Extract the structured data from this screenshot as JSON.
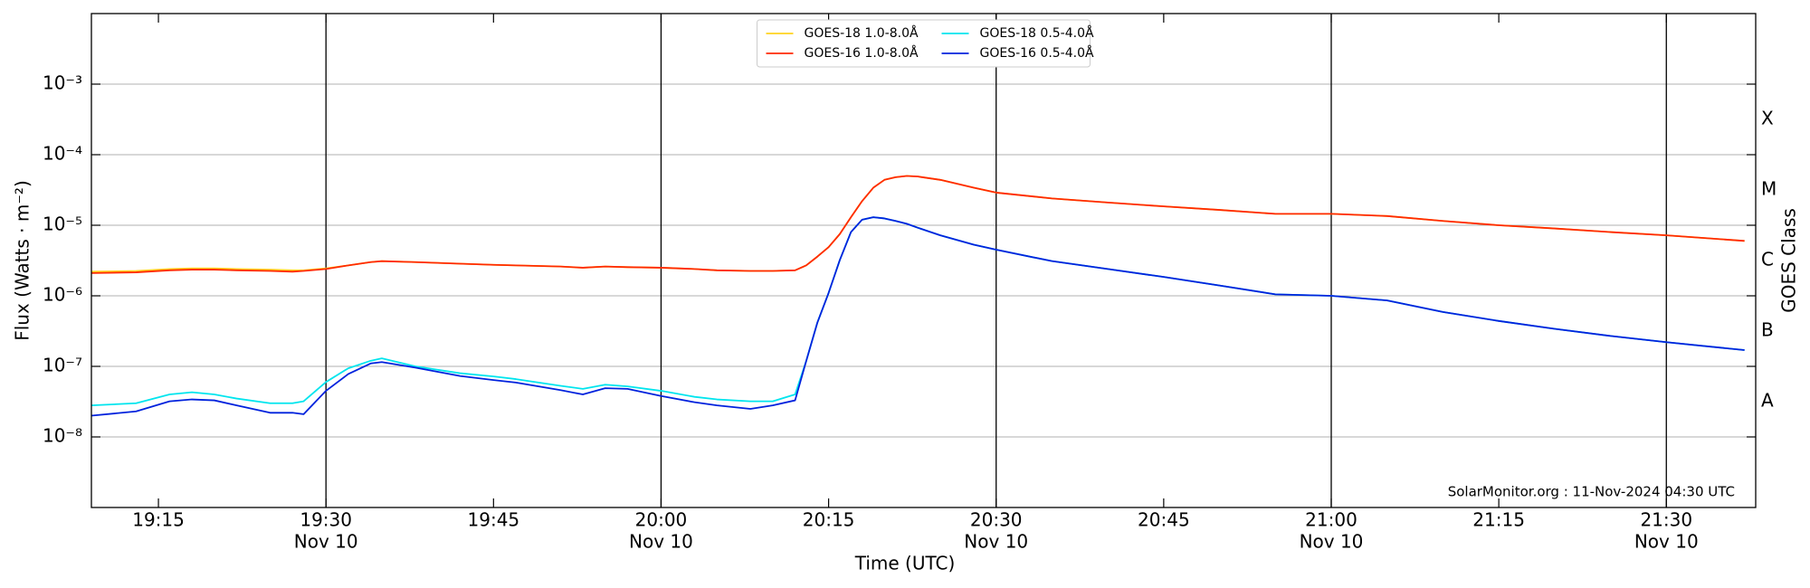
{
  "chart_data": {
    "type": "line",
    "log_y": true,
    "grid": true,
    "date_lines": true,
    "legend": "upper center",
    "xlabel": "Time (UTC)",
    "ylabel": "Flux (Watts · m⁻²)",
    "y2label": "GOES Class",
    "credit": "SolarMonitor.org : 11-Nov-2024 04:30 UTC",
    "xlim": [
      "19:09",
      "21:38"
    ],
    "xticks": [
      "19:15",
      "19:30",
      "19:45",
      "20:00",
      "20:15",
      "20:30",
      "20:45",
      "21:00",
      "21:15",
      "21:30"
    ],
    "xtick_dates": [
      null,
      "Nov 10",
      null,
      "Nov 10",
      null,
      "Nov 10",
      null,
      "Nov 10",
      null,
      "Nov 10"
    ],
    "ylim": [
      1e-09,
      0.01
    ],
    "yticks": [
      {
        "value": 1e-08,
        "label": "10⁻⁸"
      },
      {
        "value": 1e-07,
        "label": "10⁻⁷"
      },
      {
        "value": 1e-06,
        "label": "10⁻⁶"
      },
      {
        "value": 1e-05,
        "label": "10⁻⁵"
      },
      {
        "value": 0.0001,
        "label": "10⁻⁴"
      },
      {
        "value": 0.001,
        "label": "10⁻³"
      }
    ],
    "y2lim": [
      1e-09,
      0.01
    ],
    "y2ticks": [
      {
        "value": 3.16e-08,
        "label": "A"
      },
      {
        "value": 3.16e-07,
        "label": "B"
      },
      {
        "value": 3.16e-06,
        "label": "C"
      },
      {
        "value": 3.16e-05,
        "label": "M"
      },
      {
        "value": 0.000316,
        "label": "X"
      }
    ],
    "x": [
      "19:09",
      "19:13",
      "19:16",
      "19:18",
      "19:20",
      "19:22",
      "19:25",
      "19:27",
      "19:28",
      "19:30",
      "19:32",
      "19:34",
      "19:35",
      "19:38",
      "19:42",
      "19:45",
      "19:47",
      "19:51",
      "19:53",
      "19:55",
      "19:57",
      "20:00",
      "20:03",
      "20:05",
      "20:08",
      "20:10",
      "20:12",
      "20:13",
      "20:14",
      "20:15",
      "20:16",
      "20:17",
      "20:18",
      "20:19",
      "20:20",
      "20:21",
      "20:22",
      "20:23",
      "20:25",
      "20:28",
      "20:30",
      "20:35",
      "20:40",
      "20:45",
      "20:50",
      "20:55",
      "21:00",
      "21:05",
      "21:10",
      "21:15",
      "21:20",
      "21:25",
      "21:30",
      "21:37"
    ],
    "series": [
      {
        "name": "GOES-18 1.0-8.0Å",
        "color": "#ffd21f",
        "values": [
          2.2e-06,
          2.25e-06,
          2.4e-06,
          2.45e-06,
          2.45e-06,
          2.4e-06,
          2.35e-06,
          2.3e-06,
          2.3e-06,
          2.45e-06,
          2.7e-06,
          3e-06,
          3.1e-06,
          3e-06,
          2.85e-06,
          2.75e-06,
          2.7e-06,
          2.6e-06,
          2.5e-06,
          2.6e-06,
          2.55e-06,
          2.5e-06,
          2.4e-06,
          2.3e-06,
          2.25e-06,
          2.25e-06,
          2.3e-06,
          2.7e-06,
          3.6e-06,
          4.9e-06,
          7.5e-06,
          1.3e-05,
          2.2e-05,
          3.4e-05,
          4.4e-05,
          4.8e-05,
          5e-05,
          4.9e-05,
          4.4e-05,
          3.4e-05,
          2.9e-05,
          2.4e-05,
          2.1e-05,
          1.85e-05,
          1.65e-05,
          1.45e-05,
          1.45e-05,
          1.35e-05,
          1.15e-05,
          1e-05,
          9e-06,
          8e-06,
          7.2e-06,
          6e-06
        ]
      },
      {
        "name": "GOES-16 1.0-8.0Å",
        "color": "#ff2a00",
        "values": [
          2.1e-06,
          2.15e-06,
          2.3e-06,
          2.35e-06,
          2.35e-06,
          2.3e-06,
          2.25e-06,
          2.2e-06,
          2.25e-06,
          2.4e-06,
          2.7e-06,
          3e-06,
          3.1e-06,
          3e-06,
          2.85e-06,
          2.75e-06,
          2.7e-06,
          2.6e-06,
          2.5e-06,
          2.6e-06,
          2.55e-06,
          2.5e-06,
          2.4e-06,
          2.3e-06,
          2.25e-06,
          2.25e-06,
          2.3e-06,
          2.7e-06,
          3.6e-06,
          4.9e-06,
          7.5e-06,
          1.3e-05,
          2.2e-05,
          3.4e-05,
          4.4e-05,
          4.8e-05,
          5e-05,
          4.9e-05,
          4.4e-05,
          3.4e-05,
          2.9e-05,
          2.4e-05,
          2.1e-05,
          1.85e-05,
          1.65e-05,
          1.45e-05,
          1.45e-05,
          1.35e-05,
          1.15e-05,
          1e-05,
          9e-06,
          8e-06,
          7.2e-06,
          6e-06
        ]
      },
      {
        "name": "GOES-18 0.5-4.0Å",
        "color": "#00e5ee",
        "values": [
          2.8e-08,
          3e-08,
          4e-08,
          4.3e-08,
          4e-08,
          3.5e-08,
          3e-08,
          3e-08,
          3.2e-08,
          6e-08,
          9.4e-08,
          1.2e-07,
          1.3e-07,
          1e-07,
          8e-08,
          7.2e-08,
          6.6e-08,
          5.3e-08,
          4.8e-08,
          5.5e-08,
          5.2e-08,
          4.5e-08,
          3.7e-08,
          3.4e-08,
          3.2e-08,
          3.2e-08,
          4e-08,
          1.2e-07,
          4.2e-07,
          1.1e-06,
          3.2e-06,
          8e-06,
          1.2e-05,
          1.3e-05,
          1.25e-05,
          1.15e-05,
          1.05e-05,
          9.2e-06,
          7.2e-06,
          5.3e-06,
          4.5e-06,
          3.1e-06,
          2.4e-06,
          1.85e-06,
          1.4e-06,
          1.05e-06,
          1e-06,
          8.6e-07,
          5.9e-07,
          4.4e-07,
          3.4e-07,
          2.7e-07,
          2.2e-07,
          1.7e-07
        ]
      },
      {
        "name": "GOES-16 0.5-4.0Å",
        "color": "#0022dd",
        "values": [
          2e-08,
          2.3e-08,
          3.2e-08,
          3.4e-08,
          3.3e-08,
          2.8e-08,
          2.2e-08,
          2.2e-08,
          2.1e-08,
          4.5e-08,
          7.8e-08,
          1.1e-07,
          1.15e-07,
          9.6e-08,
          7.3e-08,
          6.4e-08,
          5.9e-08,
          4.6e-08,
          4e-08,
          4.9e-08,
          4.8e-08,
          3.8e-08,
          3.1e-08,
          2.8e-08,
          2.5e-08,
          2.8e-08,
          3.3e-08,
          1.2e-07,
          4.2e-07,
          1.1e-06,
          3.2e-06,
          8e-06,
          1.2e-05,
          1.3e-05,
          1.25e-05,
          1.15e-05,
          1.05e-05,
          9.2e-06,
          7.2e-06,
          5.3e-06,
          4.5e-06,
          3.1e-06,
          2.4e-06,
          1.85e-06,
          1.4e-06,
          1.05e-06,
          1e-06,
          8.6e-07,
          5.9e-07,
          4.4e-07,
          3.4e-07,
          2.7e-07,
          2.2e-07,
          1.7e-07
        ]
      }
    ]
  }
}
